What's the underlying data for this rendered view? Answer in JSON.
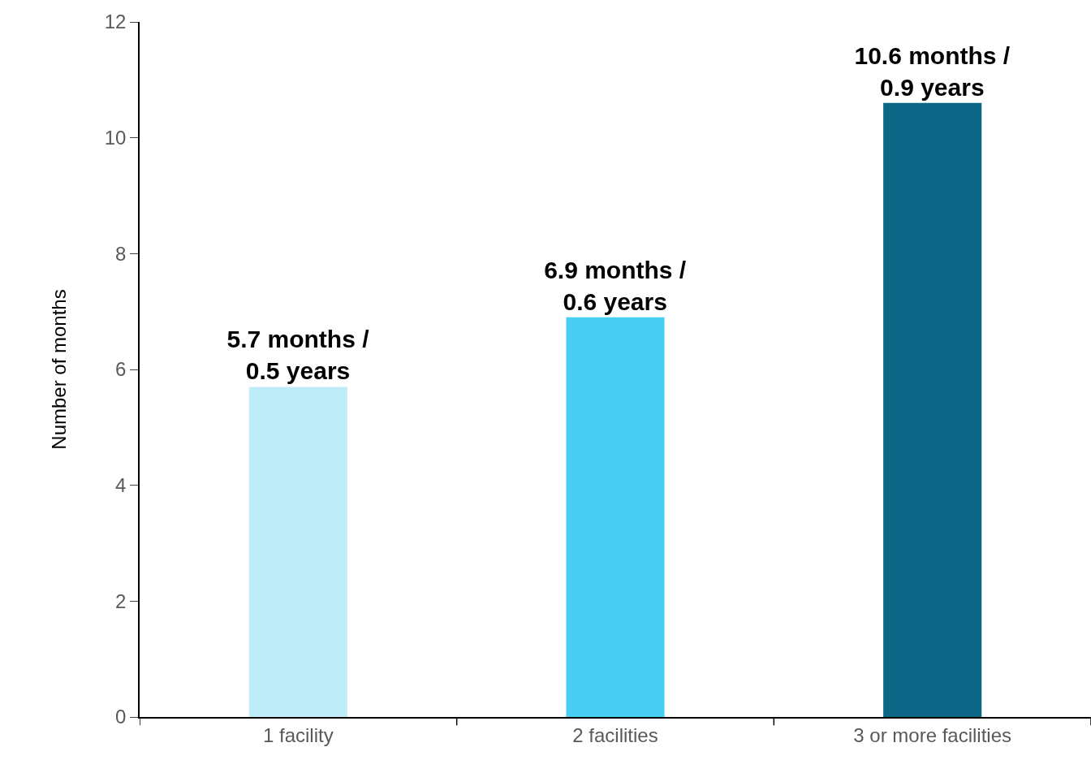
{
  "chart_data": {
    "type": "bar",
    "ylabel": "Number of months",
    "categories": [
      "1 facility",
      "2 facilities",
      "3 or more facilities"
    ],
    "values": [
      5.7,
      6.9,
      10.6
    ],
    "colors": [
      "#c0ecfa",
      "#48cdf5",
      "#0b6785"
    ],
    "value_labels": [
      "5.7 months /\n0.5 years",
      "6.9 months /\n0.6 years",
      "10.6 months /\n0.9 years"
    ],
    "ylim": [
      0,
      12
    ],
    "yticks": [
      0,
      2,
      4,
      6,
      8,
      10,
      12
    ],
    "legend": false
  }
}
